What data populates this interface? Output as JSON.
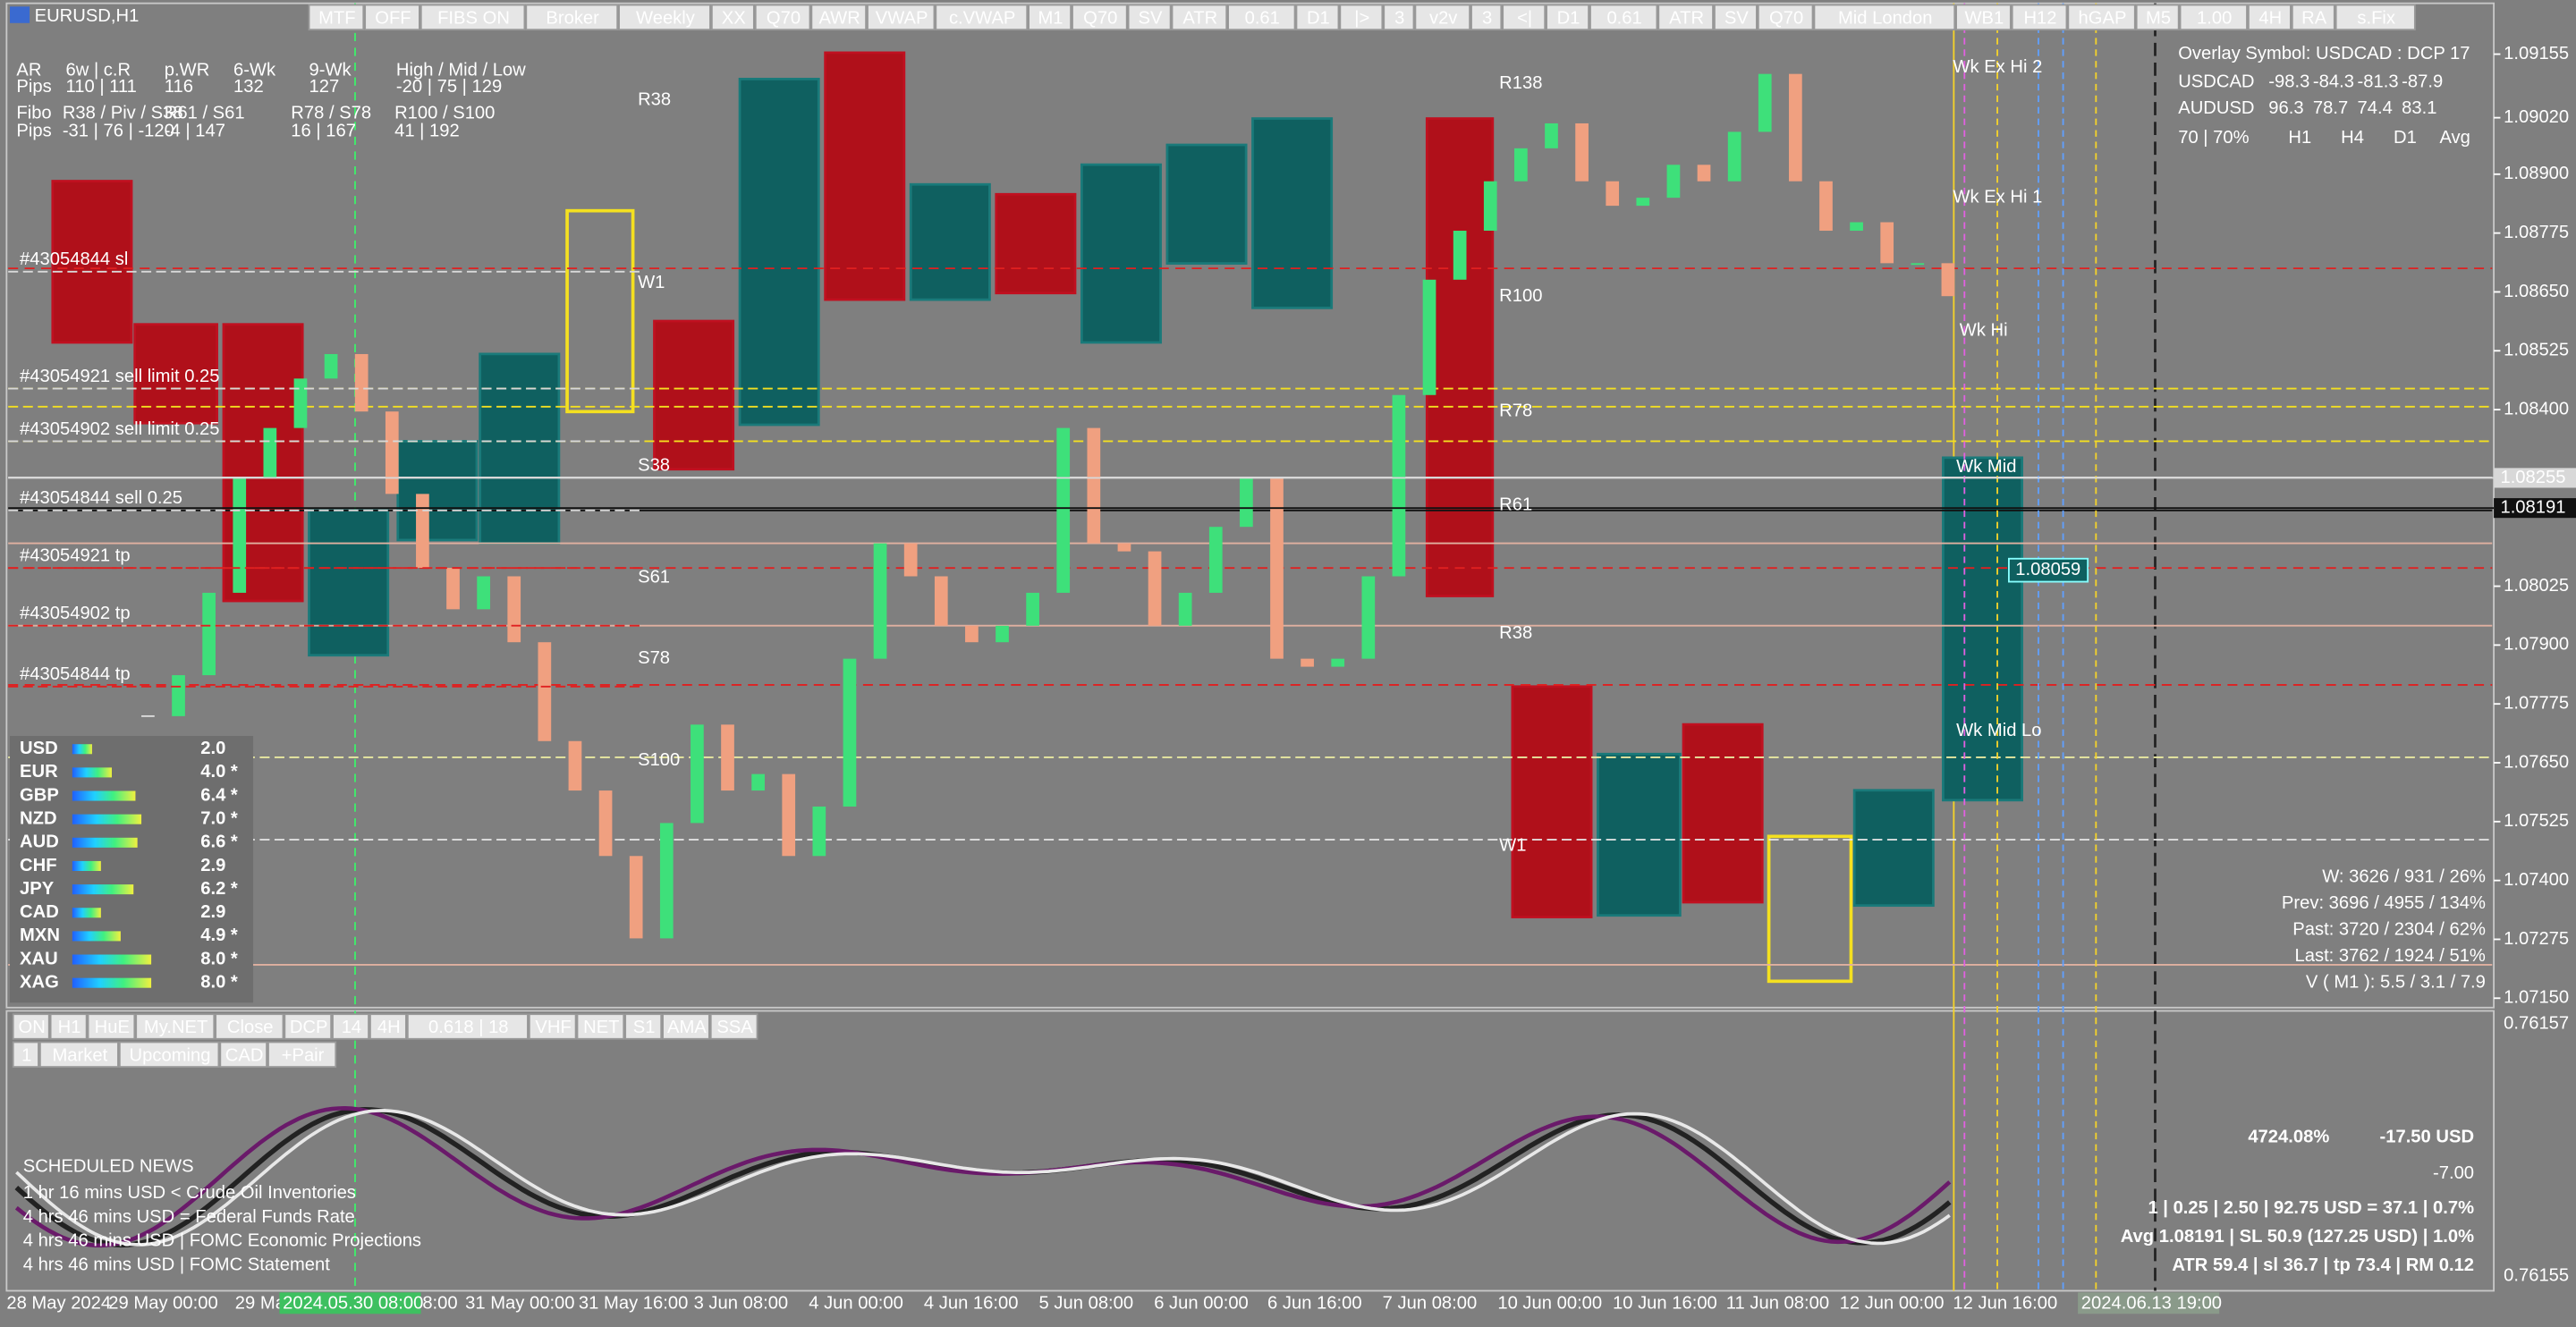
{
  "window_title": "EURUSD,H1",
  "toolbar": [
    {
      "label": "MTF",
      "color": "#333333"
    },
    {
      "label": "OFF",
      "color": "#e02020"
    },
    {
      "label": "FIBS ON",
      "color": "#e02020"
    },
    {
      "label": "Broker",
      "color": "#555555"
    },
    {
      "label": "Weekly",
      "color": "#e02020"
    },
    {
      "label": "XX",
      "color": "#333333"
    },
    {
      "label": "Q70",
      "color": "#000000"
    },
    {
      "label": "AWR",
      "color": "#e02020"
    },
    {
      "label": "VWAP",
      "color": "#e02020"
    },
    {
      "label": "c.VWAP",
      "color": "#000000"
    },
    {
      "label": "M1",
      "color": "#000000"
    },
    {
      "label": "Q70",
      "color": "#1030d0"
    },
    {
      "label": "SV",
      "color": "#1030d0"
    },
    {
      "label": "ATR",
      "color": "#1030d0"
    },
    {
      "label": "0.61",
      "color": "#1030d0"
    },
    {
      "label": "D1",
      "color": "#1030d0"
    },
    {
      "label": "|>",
      "color": "#1030d0"
    },
    {
      "label": "3",
      "color": "#1030d0"
    },
    {
      "label": "v2v",
      "color": "#e02020"
    },
    {
      "label": "3",
      "color": "#000000"
    },
    {
      "label": "<|",
      "color": "#000000"
    },
    {
      "label": "D1",
      "color": "#000000"
    },
    {
      "label": "0.61",
      "color": "#000000"
    },
    {
      "label": "ATR",
      "color": "#000000"
    },
    {
      "label": "SV",
      "color": "#000000"
    },
    {
      "label": "Q70",
      "color": "#000000"
    },
    {
      "label": "Mid London",
      "color": "#1030d0"
    },
    {
      "label": "WB1",
      "color": "#1030d0"
    },
    {
      "label": "H12",
      "color": "#1030d0"
    },
    {
      "label": "hGAP",
      "color": "#1030d0"
    },
    {
      "label": "M5",
      "color": "#1030d0"
    },
    {
      "label": "1.00",
      "color": "#666666"
    },
    {
      "label": "4H",
      "color": "#e02020"
    },
    {
      "label": "RA",
      "color": "#666666"
    },
    {
      "label": "s.Fix",
      "color": "#666666"
    }
  ],
  "info_panel": [
    [
      "AR",
      "6w | c.R",
      "p.WR",
      "6-Wk",
      "9-Wk",
      "High / Mid / Low"
    ],
    [
      "Pips",
      "110 | 111",
      "116",
      "132",
      "127",
      "-20 | 75 | 129"
    ],
    [
      "Fibo",
      "R38 / Piv / S38",
      "R61 / S61",
      "R78 / S78",
      "R100 / S100"
    ],
    [
      "Pips",
      "-31 | 76 | -120",
      "-4 | 147",
      "16 | 167",
      "41 | 192"
    ]
  ],
  "chart": {
    "ylim": [
      1.0713,
      1.0927
    ],
    "yticks": [
      1.09155,
      {
        "value": 1.0902,
        "label": "1.09020"
      },
      {
        "value": 1.089,
        "label": "1.08900"
      },
      1.08775,
      {
        "value": 1.0865,
        "label": "1.08650"
      },
      1.08525,
      {
        "value": 1.084,
        "label": "1.08400"
      },
      1.08025,
      {
        "value": 1.079,
        "label": "1.07900"
      },
      1.07775,
      {
        "value": 1.0765,
        "label": "1.07650"
      },
      1.07525,
      {
        "value": 1.074,
        "label": "1.07400"
      },
      1.07275,
      {
        "value": 1.0715,
        "label": "1.07150"
      }
    ],
    "price_markers": [
      1.08255,
      1.08191
    ],
    "entry_label": 1.08059,
    "closes": [
      1.07749,
      1.07836,
      1.08011,
      1.08256,
      1.08361,
      1.08466,
      1.08518,
      1.08396,
      1.08221,
      1.08064,
      1.07976,
      1.08046,
      1.07906,
      1.07696,
      1.07591,
      1.07452,
      1.07277,
      1.07522,
      1.07731,
      1.07591,
      1.07626,
      1.07452,
      1.07557,
      1.07871,
      1.08116,
      1.08046,
      1.07941,
      1.07906,
      1.07941,
      1.08011,
      1.08361,
      1.08116,
      1.08099,
      1.07941,
      1.08011,
      1.08151,
      1.08256,
      1.07871,
      1.07854,
      1.07871,
      1.08046,
      1.08431,
      1.08676,
      1.0878,
      1.08885,
      1.08955,
      1.09008,
      1.08885,
      1.08833,
      1.0885,
      1.0892,
      1.08885,
      1.0899,
      1.09113,
      1.08885,
      1.0878,
      1.08798,
      1.08711,
      1.08711,
      1.08641
    ],
    "time_labels": [
      "28 May 2024",
      "29 May 00:00",
      "29 Ma",
      "2024.05.30 08:00",
      "8:00",
      "31 May 00:00",
      "31 May 16:00",
      "3 Jun 08:00",
      "4 Jun 00:00",
      "4 Jun 16:00",
      "5 Jun 08:00",
      "6 Jun 00:00",
      "6 Jun 16:00",
      "7 Jun 08:00",
      "10 Jun 00:00",
      "10 Jun 16:00",
      "11 Jun 08:00",
      "12 Jun 00:00",
      "12 Jun 16:00",
      "2024.06.13 19:00"
    ]
  },
  "orders": [
    "#43054844 sl",
    "#43054921 sell limit 0.25",
    "#43054902 sell limit 0.25",
    "#43054844 sell 0.25",
    "#43054921 tp",
    "#43054902 tp",
    "#43054844 tp"
  ],
  "levels": [
    "R38",
    "W1",
    "S38",
    "S61",
    "S78",
    "S100",
    "R138",
    "R100",
    "R78",
    "R61",
    "R38",
    "W1",
    "Wk Ex Hi 2",
    "Wk Ex Hi 1",
    "Wk Hi",
    "Wk Mid",
    "Wk Mid Lo"
  ],
  "strength": [
    {
      "name": "USD",
      "value": 2,
      "label": "2.0",
      "color": "#ff4a4a"
    },
    {
      "name": "EUR",
      "value": 4,
      "label": "4.0 *",
      "color": "#3ee07a"
    },
    {
      "name": "GBP",
      "value": 6.4,
      "label": "6.4 *",
      "color": "#ffffff"
    },
    {
      "name": "NZD",
      "value": 7,
      "label": "7.0 *",
      "color": "#ffffff"
    },
    {
      "name": "AUD",
      "value": 6.6,
      "label": "6.6 *",
      "color": "#ffffff"
    },
    {
      "name": "CHF",
      "value": 2.9,
      "label": "2.9",
      "color": "#ffffff"
    },
    {
      "name": "JPY",
      "value": 6.2,
      "label": "6.2 *",
      "color": "#ffffff"
    },
    {
      "name": "CAD",
      "value": 2.9,
      "label": "2.9",
      "color": "#f4d22a"
    },
    {
      "name": "MXN",
      "value": 4.9,
      "label": "4.9 *",
      "color": "#ffffff"
    },
    {
      "name": "XAU",
      "value": 8,
      "label": "8.0 *",
      "color": "#ffffff"
    },
    {
      "name": "XAG",
      "value": 8,
      "label": "8.0 *",
      "color": "#ffffff"
    }
  ],
  "news": {
    "title": "SCHEDULED NEWS",
    "items": [
      {
        "text": "1 hr 16 mins  USD  <  Crude Oil Inventories",
        "color": "#c8c8c8"
      },
      {
        "text": "4 hrs 46 mins  USD  =  Federal Funds Rate",
        "color": "#3ef06a"
      },
      {
        "text": "4 hrs 46 mins  USD  |  FOMC Economic Projections",
        "color": "#3ef06a"
      },
      {
        "text": "4 hrs 46 mins  USD  |  FOMC Statement",
        "color": "#3ef06a"
      }
    ]
  },
  "overlay": {
    "title": "Overlay Symbol: USDCAD : DCP 17",
    "rows": [
      {
        "symbol": "USDCAD",
        "values": [
          -98.3,
          -84.3,
          -81.3,
          -87.9
        ],
        "color": "#ff8a6a"
      },
      {
        "symbol": "AUDUSD",
        "values": [
          96.3,
          78.7,
          74.4,
          83.1
        ],
        "color": "#3ef06a"
      }
    ],
    "header": [
      "70 | 70%",
      "H1",
      "H4",
      "D1",
      "Avg"
    ]
  },
  "stats": [
    "W: 3626 / 931 / 26%",
    "Prev: 3696 / 4955 / 134%",
    "Past: 3720 / 2304 / 62%",
    "Last: 3762 / 1924 / 51%",
    "V ( M1 ): 5.5 / 3.1 / 7.9"
  ],
  "account": {
    "percent": "4724.08%",
    "pl": "-17.50 USD",
    "pips": "-7.00",
    "lines": [
      "1  |  0.25  |  2.50  |  92.75 USD = 37.1  |  0.7%",
      "Avg 1.08191  |  SL 50.9 (127.25 USD)  |  1.0%",
      "ATR 59.4  |  sl 36.7  |  tp 73.4  |  RM 0.12"
    ]
  },
  "subwindow": {
    "toolbar": [
      [
        {
          "label": "ON",
          "color": "#1030d0"
        },
        {
          "label": "H1",
          "color": "#000000"
        },
        {
          "label": "HuE",
          "color": "#e02020"
        },
        {
          "label": "My.NET",
          "color": "#1030d0"
        },
        {
          "label": "Close",
          "color": "#1030d0"
        },
        {
          "label": "DCP",
          "color": "#000000"
        },
        {
          "label": "14",
          "color": "#000000"
        },
        {
          "label": "4H",
          "color": "#e02020"
        },
        {
          "label": "0.618 | 18",
          "color": "#1030d0"
        },
        {
          "label": "VHF",
          "color": "#e02020"
        },
        {
          "label": "NET",
          "color": "#1030d0"
        },
        {
          "label": "S1",
          "color": "#e02020"
        },
        {
          "label": "AMA",
          "color": "#1030d0"
        },
        {
          "label": "SSA",
          "color": "#e02020"
        }
      ],
      [
        {
          "label": "1",
          "color": "#000000"
        },
        {
          "label": "Market",
          "color": "#333333"
        },
        {
          "label": "Upcoming",
          "color": "#e02020"
        },
        {
          "label": "CAD",
          "color": "#e02020"
        },
        {
          "label": "+Pair",
          "color": "#1030d0"
        }
      ]
    ],
    "axis_labels": [
      "0.76157",
      "0.76155"
    ]
  }
}
